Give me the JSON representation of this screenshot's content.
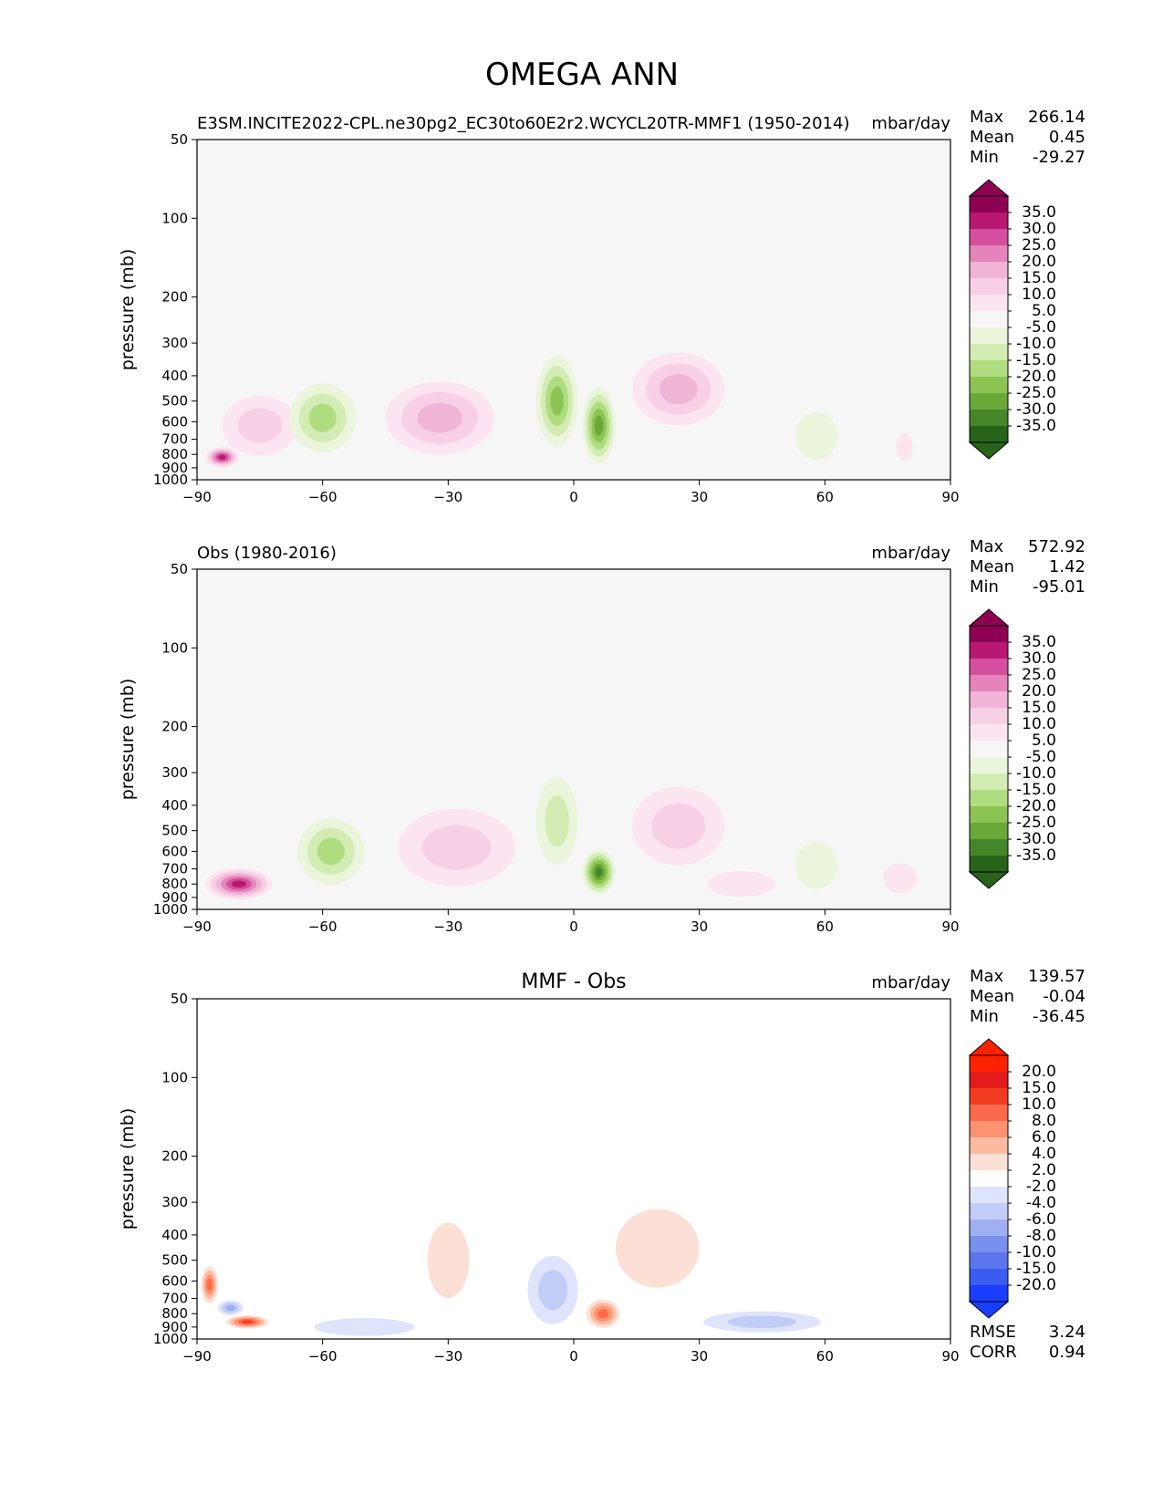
{
  "title": "OMEGA ANN",
  "colors": {
    "pos": [
      "#f6f6f6",
      "#fce4f0",
      "#f8d0e6",
      "#f0b4d6",
      "#e484bb",
      "#d44f9d",
      "#b8186f",
      "#8e0152"
    ],
    "neg": [
      "#f6f6f6",
      "#eaf5dc",
      "#d2ecb4",
      "#b0dc80",
      "#8cc454",
      "#6aa838",
      "#45862a",
      "#276419"
    ],
    "dpos": [
      "#ffffff",
      "#fde0d5",
      "#fcbba1",
      "#fc9272",
      "#fb6a4a",
      "#f03b20",
      "#e41a1c",
      "#ff2200"
    ],
    "dneg": [
      "#ffffff",
      "#dee4fb",
      "#c2cdf7",
      "#9fb0f2",
      "#7a90ee",
      "#5a75ee",
      "#3a5cf0",
      "#1a3dff"
    ]
  },
  "chart_data": [
    {
      "id": "test",
      "type": "heatmap",
      "title_left": "E3SM.INCITE2022-CPL.ne30pg2_EC30to60E2r2.WCYCL20TR-MMF1 (1950-2014)",
      "title_center": "",
      "units": "mbar/day",
      "ylabel": "pressure (mb)",
      "xlim": [
        -90,
        90
      ],
      "ylim": [
        1000,
        50
      ],
      "xticks": [
        -90,
        -60,
        -30,
        0,
        30,
        60,
        90
      ],
      "yticks": [
        50,
        100,
        200,
        300,
        400,
        500,
        600,
        700,
        800,
        900,
        1000
      ],
      "stats": {
        "max_label": "Max",
        "max": "266.14",
        "mean_label": "Mean",
        "mean": "0.45",
        "min_label": "Min",
        "min": "-29.27"
      },
      "colorbar": {
        "palette": "full",
        "levels": [
          "35.0",
          "30.0",
          "25.0",
          "20.0",
          "15.0",
          "10.0",
          "5.0",
          "-5.0",
          "-10.0",
          "-15.0",
          "-20.0",
          "-25.0",
          "-30.0",
          "-35.0"
        ]
      },
      "blobs": [
        {
          "lat": -32,
          "p": 580,
          "wlat": 13,
          "wp": 360,
          "v": 3
        },
        {
          "lat": 25,
          "p": 450,
          "wlat": 11,
          "wp": 280,
          "v": 3
        },
        {
          "lat": -75,
          "p": 620,
          "wlat": 9,
          "wp": 320,
          "v": 2
        },
        {
          "lat": -84,
          "p": 820,
          "wlat": 4,
          "wp": 150,
          "v": 6
        },
        {
          "lat": -60,
          "p": 580,
          "wlat": 8,
          "wp": 340,
          "v": -3
        },
        {
          "lat": -4,
          "p": 500,
          "wlat": 5,
          "wp": 380,
          "v": -4
        },
        {
          "lat": 6,
          "p": 620,
          "wlat": 4,
          "wp": 400,
          "v": -5
        },
        {
          "lat": 58,
          "p": 680,
          "wlat": 5,
          "wp": 280,
          "v": -1
        },
        {
          "lat": 79,
          "p": 750,
          "wlat": 2,
          "wp": 180,
          "v": 1
        }
      ]
    },
    {
      "id": "ref",
      "type": "heatmap",
      "title_left": "Obs (1980-2016)",
      "title_center": "",
      "units": "mbar/day",
      "ylabel": "pressure (mb)",
      "xlim": [
        -90,
        90
      ],
      "ylim": [
        1000,
        50
      ],
      "xticks": [
        -90,
        -60,
        -30,
        0,
        30,
        60,
        90
      ],
      "yticks": [
        50,
        100,
        200,
        300,
        400,
        500,
        600,
        700,
        800,
        900,
        1000
      ],
      "stats": {
        "max_label": "Max",
        "max": "572.92",
        "mean_label": "Mean",
        "mean": "1.42",
        "min_label": "Min",
        "min": "-95.01"
      },
      "colorbar": {
        "palette": "full",
        "levels": [
          "35.0",
          "30.0",
          "25.0",
          "20.0",
          "15.0",
          "10.0",
          "5.0",
          "-5.0",
          "-10.0",
          "-15.0",
          "-20.0",
          "-25.0",
          "-30.0",
          "-35.0"
        ]
      },
      "blobs": [
        {
          "lat": -28,
          "p": 580,
          "wlat": 14,
          "wp": 380,
          "v": 2
        },
        {
          "lat": 25,
          "p": 480,
          "wlat": 11,
          "wp": 320,
          "v": 2
        },
        {
          "lat": -80,
          "p": 800,
          "wlat": 8,
          "wp": 220,
          "v": 6
        },
        {
          "lat": -58,
          "p": 600,
          "wlat": 8,
          "wp": 340,
          "v": -3
        },
        {
          "lat": -4,
          "p": 460,
          "wlat": 5,
          "wp": 340,
          "v": -2
        },
        {
          "lat": 6,
          "p": 720,
          "wlat": 4,
          "wp": 280,
          "v": -6
        },
        {
          "lat": 58,
          "p": 680,
          "wlat": 5,
          "wp": 280,
          "v": -1
        },
        {
          "lat": 40,
          "p": 800,
          "wlat": 8,
          "wp": 180,
          "v": 1
        },
        {
          "lat": 78,
          "p": 760,
          "wlat": 4,
          "wp": 200,
          "v": 1
        }
      ]
    },
    {
      "id": "diff",
      "type": "heatmap",
      "title_left": "",
      "title_center": "MMF - Obs",
      "units": "mbar/day",
      "ylabel": "pressure (mb)",
      "xlim": [
        -90,
        90
      ],
      "ylim": [
        1000,
        50
      ],
      "xticks": [
        -90,
        -60,
        -30,
        0,
        30,
        60,
        90
      ],
      "yticks": [
        50,
        100,
        200,
        300,
        400,
        500,
        600,
        700,
        800,
        900,
        1000
      ],
      "stats": {
        "max_label": "Max",
        "max": "139.57",
        "mean_label": "Mean",
        "mean": "-0.04",
        "min_label": "Min",
        "min": "-36.45"
      },
      "colorbar": {
        "palette": "diff",
        "levels": [
          "20.0",
          "15.0",
          "10.0",
          "8.0",
          "6.0",
          "4.0",
          "2.0",
          "-2.0",
          "-4.0",
          "-6.0",
          "-8.0",
          "-10.0",
          "-15.0",
          "-20.0"
        ]
      },
      "extra": {
        "rmse_label": "RMSE",
        "rmse": "3.24",
        "corr_label": "CORR",
        "corr": "0.94"
      },
      "blobs": [
        {
          "lat": -30,
          "p": 500,
          "wlat": 5,
          "wp": 320,
          "v": 1
        },
        {
          "lat": 20,
          "p": 450,
          "wlat": 10,
          "wp": 300,
          "v": 1
        },
        {
          "lat": 7,
          "p": 800,
          "wlat": 4,
          "wp": 200,
          "v": 4
        },
        {
          "lat": -78,
          "p": 860,
          "wlat": 5,
          "wp": 100,
          "v": 5
        },
        {
          "lat": -87,
          "p": 620,
          "wlat": 2,
          "wp": 200,
          "v": 4
        },
        {
          "lat": -5,
          "p": 650,
          "wlat": 6,
          "wp": 380,
          "v": -2
        },
        {
          "lat": 45,
          "p": 860,
          "wlat": 14,
          "wp": 160,
          "v": -2
        },
        {
          "lat": -50,
          "p": 900,
          "wlat": 12,
          "wp": 140,
          "v": -1
        },
        {
          "lat": -82,
          "p": 760,
          "wlat": 3,
          "wp": 100,
          "v": -3
        }
      ]
    }
  ]
}
